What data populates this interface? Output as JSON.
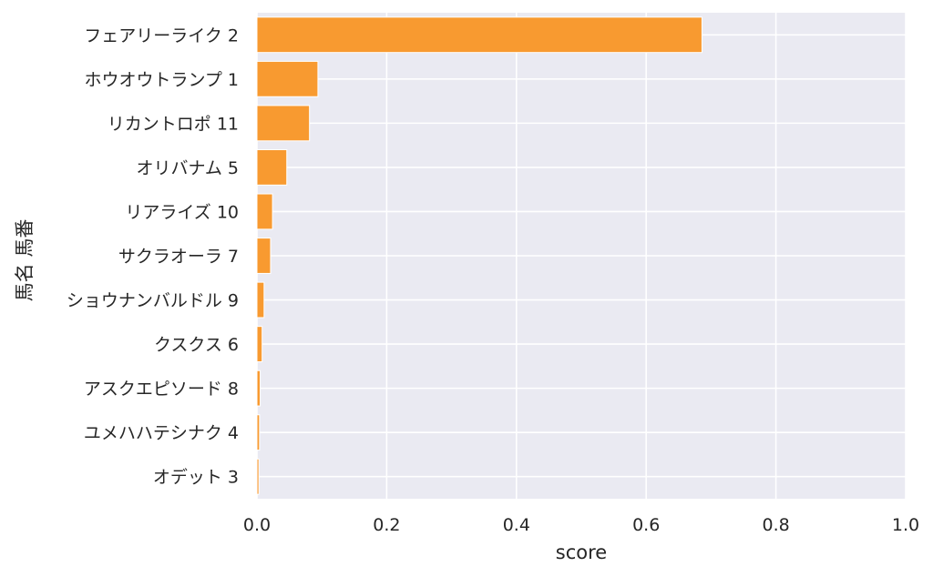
{
  "chart_data": {
    "type": "bar",
    "orientation": "horizontal",
    "categories": [
      "フェアリーライク 2",
      "ホウオウトランプ 1",
      "リカントロポ 11",
      "オリバナム 5",
      "リアライズ 10",
      "サクラオーラ 7",
      "ショウナンバルドル 9",
      "クスクス 6",
      "アスクエピソード 8",
      "ユメハハテシナク 4",
      "オデット 3"
    ],
    "values": [
      0.686,
      0.094,
      0.081,
      0.046,
      0.024,
      0.021,
      0.011,
      0.008,
      0.005,
      0.004,
      0.003
    ],
    "xlabel": "score",
    "ylabel": "馬名 馬番",
    "xlim": [
      0,
      1.0
    ],
    "xticks": [
      "0.0",
      "0.2",
      "0.4",
      "0.6",
      "0.8",
      "1.0"
    ],
    "grid": true,
    "colors": {
      "bar": "#f89a30",
      "bar_edge": "#ffffff",
      "plot_background": "#eaeaf2",
      "grid": "#ffffff",
      "text": "#262626"
    }
  }
}
